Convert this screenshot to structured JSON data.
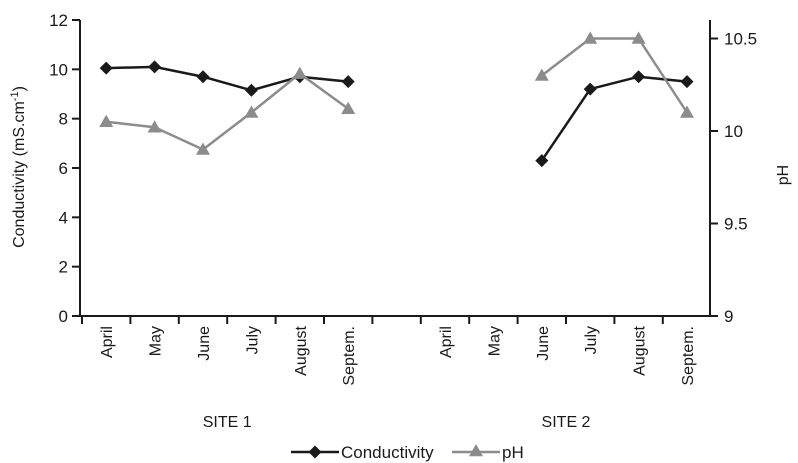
{
  "chart_data": {
    "type": "line",
    "groups": [
      {
        "label": "SITE 1",
        "months": [
          "April",
          "May",
          "June",
          "July",
          "August",
          "Septem."
        ]
      },
      {
        "label": "SITE 2",
        "months": [
          "April",
          "May",
          "June",
          "July",
          "August",
          "Septem."
        ]
      }
    ],
    "y_left": {
      "label_main": "Conductivity (mS.cm",
      "label_sup": "-1",
      "label_end": ")",
      "range": [
        0,
        12
      ],
      "ticks": [
        0,
        2,
        4,
        6,
        8,
        10,
        12
      ],
      "tick_labels": [
        "0",
        "2",
        "4",
        "6",
        "8",
        "10",
        "12"
      ]
    },
    "y_right": {
      "label": "pH",
      "range": [
        9,
        10.6
      ],
      "ticks": [
        9,
        9.5,
        10,
        10.5
      ],
      "tick_labels": [
        "9",
        "9.5",
        "10",
        "10.5"
      ]
    },
    "series": [
      {
        "name": "Conductivity",
        "axis": "left",
        "color": "#1a1a1a",
        "marker": "diamond",
        "values": [
          [
            10.05,
            10.1,
            9.7,
            9.15,
            9.7,
            9.5
          ],
          [
            null,
            null,
            6.3,
            9.2,
            9.7,
            9.5
          ]
        ]
      },
      {
        "name": "pH",
        "axis": "right",
        "color": "#8c8c8c",
        "marker": "triangle",
        "values": [
          [
            10.05,
            10.02,
            9.9,
            10.1,
            10.31,
            10.12
          ],
          [
            null,
            null,
            10.3,
            10.5,
            10.5,
            10.1
          ]
        ]
      }
    ],
    "grid": false,
    "legend_position": "bottom-center"
  }
}
